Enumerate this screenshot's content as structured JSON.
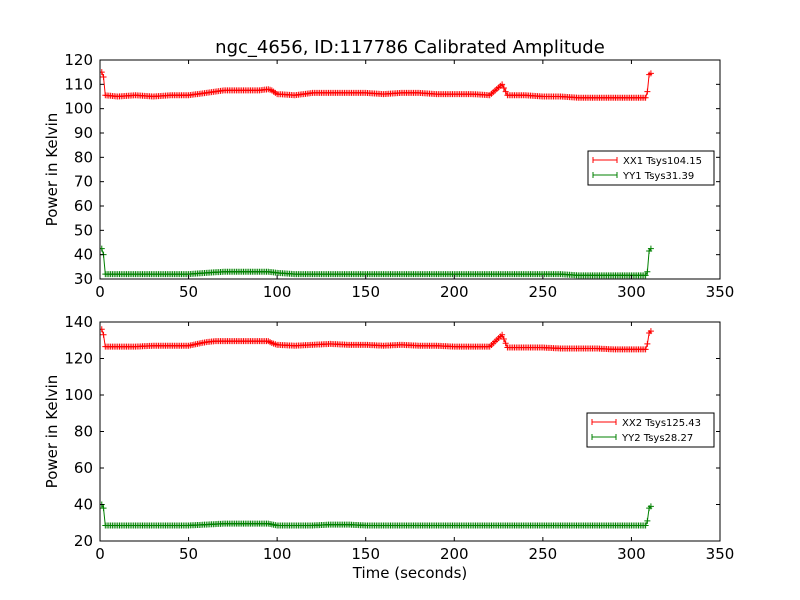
{
  "figure": {
    "title": "ngc_4656, ID:117786 Calibrated Amplitude"
  },
  "chart_data": [
    {
      "type": "line",
      "title": "ngc_4656, ID:117786 Calibrated Amplitude",
      "xlabel": "",
      "ylabel": "Power in Kelvin",
      "xlim": [
        0,
        350
      ],
      "ylim": [
        30,
        120
      ],
      "xticks": [
        0,
        50,
        100,
        150,
        200,
        250,
        300,
        350
      ],
      "yticks": [
        30,
        40,
        50,
        60,
        70,
        80,
        90,
        100,
        110,
        120
      ],
      "grid": false,
      "legend_position": "center-right",
      "series": [
        {
          "name": "XX1 Tsys104.15",
          "color": "#ff0000",
          "marker": "plus",
          "x": [
            1,
            2,
            3,
            10,
            20,
            30,
            40,
            50,
            55,
            60,
            65,
            70,
            80,
            90,
            95,
            97,
            100,
            110,
            120,
            130,
            140,
            150,
            160,
            170,
            180,
            190,
            200,
            205,
            210,
            220,
            227,
            230,
            240,
            250,
            260,
            270,
            280,
            290,
            300,
            308,
            309,
            310,
            311
          ],
          "y": [
            115,
            113,
            105.5,
            105,
            105.5,
            105,
            105.5,
            105.5,
            106,
            106.5,
            107,
            107.5,
            107.5,
            107.5,
            108,
            107.5,
            106,
            105.5,
            106.5,
            106.5,
            106.5,
            106.5,
            106,
            106.5,
            106.5,
            106,
            106,
            106,
            106,
            105.5,
            110,
            105.5,
            105.5,
            105,
            105,
            104.5,
            104.5,
            104.5,
            104.5,
            104.5,
            107,
            114,
            114.5
          ]
        },
        {
          "name": "YY1 Tsys31.39",
          "color": "#008000",
          "marker": "plus",
          "x": [
            1,
            2,
            3,
            10,
            20,
            30,
            40,
            50,
            60,
            70,
            80,
            90,
            95,
            100,
            110,
            120,
            130,
            140,
            150,
            160,
            170,
            180,
            190,
            200,
            210,
            220,
            230,
            240,
            250,
            260,
            270,
            280,
            290,
            300,
            308,
            309,
            310,
            311
          ],
          "y": [
            42.5,
            40,
            32,
            32,
            32,
            32,
            32,
            32,
            32.5,
            33,
            33,
            33,
            33,
            32.5,
            32,
            32,
            32,
            32,
            32,
            32,
            32,
            32,
            32,
            32,
            32,
            32,
            32,
            32,
            32,
            32,
            31.5,
            31.5,
            31.5,
            31.5,
            31.5,
            33,
            41.5,
            42.5
          ]
        }
      ]
    },
    {
      "type": "line",
      "title": "",
      "xlabel": "Time (seconds)",
      "ylabel": "Power in Kelvin",
      "xlim": [
        0,
        350
      ],
      "ylim": [
        20,
        140
      ],
      "xticks": [
        0,
        50,
        100,
        150,
        200,
        250,
        300,
        350
      ],
      "yticks": [
        20,
        40,
        60,
        80,
        100,
        120,
        140
      ],
      "grid": false,
      "legend_position": "center-right",
      "series": [
        {
          "name": "XX2 Tsys125.43",
          "color": "#ff0000",
          "marker": "plus",
          "x": [
            1,
            2,
            3,
            10,
            20,
            30,
            40,
            50,
            55,
            60,
            65,
            70,
            80,
            90,
            95,
            97,
            100,
            110,
            120,
            130,
            140,
            150,
            160,
            170,
            180,
            190,
            200,
            210,
            220,
            227,
            230,
            240,
            250,
            260,
            270,
            280,
            290,
            300,
            308,
            309,
            310,
            311
          ],
          "y": [
            136,
            133,
            126.5,
            126.5,
            126.5,
            127,
            127,
            127,
            128,
            129,
            129.5,
            129.5,
            129.5,
            129.5,
            129.5,
            128.5,
            127.5,
            127,
            127.5,
            128,
            127.5,
            127.5,
            127,
            127.5,
            127,
            127,
            126.5,
            126.5,
            126.5,
            133,
            126,
            126,
            126,
            125.5,
            125.5,
            125.5,
            125,
            125,
            125,
            128,
            134,
            135
          ]
        },
        {
          "name": "YY2 Tsys28.27",
          "color": "#008000",
          "marker": "plus",
          "x": [
            1,
            2,
            3,
            10,
            20,
            30,
            40,
            50,
            60,
            70,
            80,
            90,
            95,
            100,
            110,
            120,
            130,
            140,
            150,
            160,
            170,
            180,
            190,
            200,
            210,
            220,
            230,
            240,
            250,
            260,
            270,
            280,
            290,
            300,
            308,
            309,
            310,
            311
          ],
          "y": [
            40,
            38,
            28.5,
            28.5,
            28.5,
            28.5,
            28.5,
            28.5,
            29,
            29.5,
            29.5,
            29.5,
            29.5,
            28.5,
            28.5,
            28.5,
            29,
            29,
            28.5,
            28.5,
            28.5,
            28.5,
            28.5,
            28.5,
            28.5,
            28.5,
            28.5,
            28.5,
            28.5,
            28.5,
            28.5,
            28.5,
            28.5,
            28.5,
            28.5,
            31,
            38,
            39
          ]
        }
      ]
    }
  ]
}
